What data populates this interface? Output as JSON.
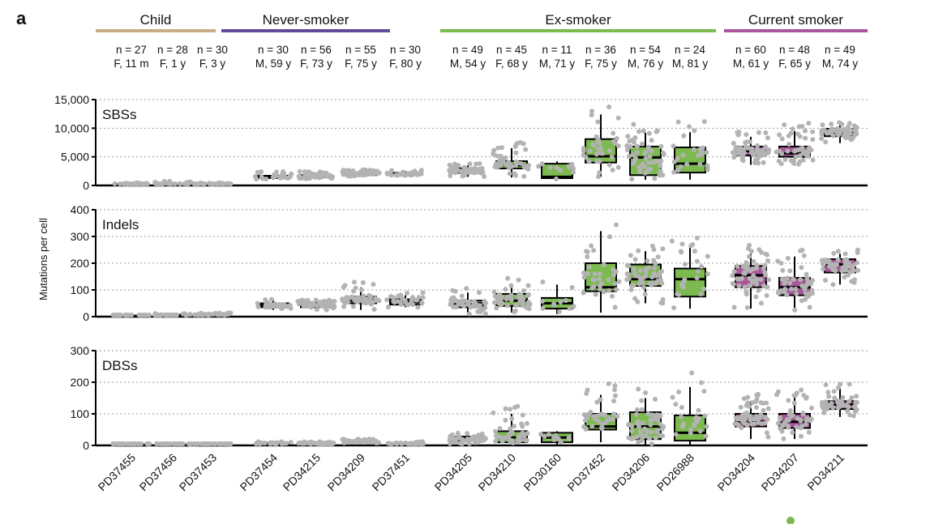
{
  "figure_letter": "a",
  "chart_data": {
    "type": "box",
    "ylabel": "Mutations per cell",
    "groups": [
      {
        "name": "Child",
        "color": "#c9ab85"
      },
      {
        "name": "Never-smoker",
        "color": "#5e4c99"
      },
      {
        "name": "Ex-smoker",
        "color": "#7cba4f"
      },
      {
        "name": "Current smoker",
        "color": "#a8579b"
      }
    ],
    "samples": [
      {
        "id": "PD37455",
        "group": 0,
        "n_label": "n = 27",
        "n": 27,
        "info": "F, 11 m"
      },
      {
        "id": "PD37456",
        "group": 0,
        "n_label": "n = 28",
        "n": 28,
        "info": "F, 1 y"
      },
      {
        "id": "PD37453",
        "group": 0,
        "n_label": "n = 30",
        "n": 30,
        "info": "F, 3 y"
      },
      {
        "id": "PD37454",
        "group": 1,
        "n_label": "n = 30",
        "n": 30,
        "info": "M, 59 y"
      },
      {
        "id": "PD34215",
        "group": 1,
        "n_label": "n = 56",
        "n": 56,
        "info": "F, 73 y"
      },
      {
        "id": "PD34209",
        "group": 1,
        "n_label": "n = 55",
        "n": 55,
        "info": "F, 75 y"
      },
      {
        "id": "PD37451",
        "group": 1,
        "n_label": "n = 30",
        "n": 30,
        "info": "F, 80 y"
      },
      {
        "id": "PD34205",
        "group": 2,
        "n_label": "n = 49",
        "n": 49,
        "info": "M, 54 y"
      },
      {
        "id": "PD34210",
        "group": 2,
        "n_label": "n = 45",
        "n": 45,
        "info": "F, 68 y"
      },
      {
        "id": "PD30160",
        "group": 2,
        "n_label": "n = 11",
        "n": 11,
        "info": "M, 71 y"
      },
      {
        "id": "PD37452",
        "group": 2,
        "n_label": "n = 36",
        "n": 36,
        "info": "F, 75 y"
      },
      {
        "id": "PD34206",
        "group": 2,
        "n_label": "n = 54",
        "n": 54,
        "info": "M, 76 y"
      },
      {
        "id": "PD26988",
        "group": 2,
        "n_label": "n = 24",
        "n": 24,
        "info": "M, 81 y"
      },
      {
        "id": "PD34204",
        "group": 3,
        "n_label": "n = 60",
        "n": 60,
        "info": "M, 61 y"
      },
      {
        "id": "PD34207",
        "group": 3,
        "n_label": "n = 48",
        "n": 48,
        "info": "F, 65 y"
      },
      {
        "id": "PD34211",
        "group": 3,
        "n_label": "n = 49",
        "n": 49,
        "info": "M, 74 y"
      }
    ],
    "panels": [
      {
        "label": "SBSs",
        "ylim": [
          0,
          15000
        ],
        "ticks": [
          0,
          5000,
          10000,
          15000
        ],
        "tick_labels": [
          "0",
          "5,000",
          "10,000",
          "15,000"
        ],
        "boxes": [
          [
            50,
            150,
            200,
            250,
            400
          ],
          [
            50,
            150,
            200,
            250,
            600
          ],
          [
            50,
            150,
            200,
            250,
            400
          ],
          [
            1000,
            1300,
            1500,
            1700,
            2200
          ],
          [
            1100,
            1400,
            1600,
            1800,
            2200
          ],
          [
            1500,
            1800,
            2000,
            2200,
            2600
          ],
          [
            1600,
            1800,
            2000,
            2200,
            2500
          ],
          [
            1500,
            2200,
            2600,
            3000,
            3500
          ],
          [
            1400,
            2970,
            3500,
            4240,
            6500
          ],
          [
            1000,
            1270,
            1500,
            3800,
            4200
          ],
          [
            1500,
            4000,
            5100,
            8100,
            12400
          ],
          [
            1000,
            1800,
            4900,
            6800,
            9200
          ],
          [
            1000,
            2250,
            3800,
            6650,
            9300
          ],
          [
            3600,
            5250,
            6000,
            6800,
            8500
          ],
          [
            3500,
            5000,
            5600,
            6800,
            9500
          ],
          [
            7400,
            8600,
            9200,
            9900,
            10500
          ]
        ]
      },
      {
        "label": "Indels",
        "ylim": [
          0,
          400
        ],
        "ticks": [
          0,
          100,
          200,
          300,
          400
        ],
        "tick_labels": [
          "0",
          "100",
          "200",
          "300",
          "400"
        ],
        "boxes": [
          [
            0,
            2,
            3,
            4,
            6
          ],
          [
            2,
            5,
            6,
            7,
            10
          ],
          [
            3,
            6,
            8,
            10,
            13
          ],
          [
            25,
            35,
            42,
            50,
            60
          ],
          [
            25,
            35,
            42,
            50,
            60
          ],
          [
            25,
            50,
            62,
            75,
            110
          ],
          [
            35,
            45,
            55,
            65,
            80
          ],
          [
            10,
            35,
            50,
            60,
            90
          ],
          [
            15,
            40,
            60,
            85,
            120
          ],
          [
            10,
            30,
            50,
            70,
            120
          ],
          [
            15,
            95,
            110,
            200,
            320
          ],
          [
            50,
            115,
            140,
            195,
            245
          ],
          [
            30,
            75,
            140,
            180,
            265
          ],
          [
            30,
            110,
            155,
            190,
            235
          ],
          [
            20,
            80,
            110,
            145,
            225
          ],
          [
            120,
            165,
            195,
            215,
            235
          ]
        ]
      },
      {
        "label": "DBSs",
        "ylim": [
          0,
          300
        ],
        "ticks": [
          0,
          100,
          200,
          300
        ],
        "tick_labels": [
          "0",
          "100",
          "200",
          "300"
        ],
        "boxes": [
          [
            0,
            1,
            2,
            3,
            4
          ],
          [
            0,
            1,
            2,
            3,
            4
          ],
          [
            0,
            1,
            2,
            3,
            4
          ],
          [
            3,
            5,
            7,
            9,
            11
          ],
          [
            2,
            4,
            6,
            8,
            10
          ],
          [
            7,
            10,
            13,
            15,
            18
          ],
          [
            2,
            4,
            6,
            8,
            10
          ],
          [
            5,
            15,
            22,
            28,
            35
          ],
          [
            0,
            10,
            25,
            45,
            100
          ],
          [
            0,
            10,
            25,
            40,
            45
          ],
          [
            10,
            50,
            60,
            100,
            160
          ],
          [
            0,
            20,
            60,
            105,
            150
          ],
          [
            0,
            15,
            40,
            95,
            185
          ],
          [
            20,
            60,
            75,
            100,
            140
          ],
          [
            20,
            55,
            75,
            100,
            155
          ],
          [
            90,
            115,
            130,
            140,
            180
          ]
        ]
      }
    ]
  }
}
